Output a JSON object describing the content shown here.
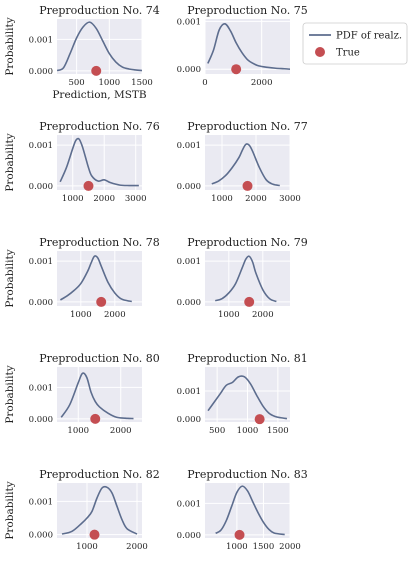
{
  "colors": {
    "plot_bg": "#EAEAF2",
    "grid": "#FFFFFF",
    "curve": "#5D6D8E",
    "dot": "#C44E52",
    "legend_border": "#CCCCCC"
  },
  "legend": {
    "position": "top-right",
    "entries": [
      "PDF of realz.",
      "True"
    ]
  },
  "y_label": "Probability",
  "chart_data": [
    {
      "type": "line",
      "title": "Preproduction No. 74",
      "xlabel": "Prediction, MSTB",
      "ylabel": "Probability",
      "xlim": [
        200,
        1500
      ],
      "ylim": [
        -0.0001,
        0.00165
      ],
      "xticks": [
        500,
        1000,
        1500
      ],
      "yticks": [
        0,
        0.001
      ],
      "ytick_labels": [
        "0.000",
        "0.001"
      ],
      "x": [
        200,
        300,
        400,
        500,
        600,
        700,
        800,
        900,
        1000,
        1100,
        1200,
        1300,
        1400,
        1500
      ],
      "y": [
        1e-05,
        0.0001,
        0.00055,
        0.00105,
        0.0014,
        0.00155,
        0.00135,
        0.00095,
        0.00055,
        0.00028,
        0.00012,
        6e-05,
        3e-05,
        1e-05
      ],
      "true_value": 800
    },
    {
      "type": "line",
      "title": "Preproduction No. 75",
      "xlabel": "",
      "ylabel": "",
      "xlim": [
        0,
        3000
      ],
      "ylim": [
        -0.0001,
        0.00105
      ],
      "xticks": [
        0,
        2000
      ],
      "yticks": [
        0,
        0.001
      ],
      "ytick_labels": [
        "0.000",
        "0.001"
      ],
      "x": [
        100,
        300,
        500,
        700,
        900,
        1100,
        1300,
        1500,
        1700,
        1900,
        2200,
        2500,
        2800,
        3000
      ],
      "y": [
        0.00012,
        0.0004,
        0.00082,
        0.00095,
        0.0008,
        0.00055,
        0.00035,
        0.0002,
        0.00012,
        7e-05,
        4e-05,
        2e-05,
        1e-05,
        0
      ],
      "true_value": 1100
    },
    {
      "type": "line",
      "title": "Preproduction No. 76",
      "xlabel": "",
      "ylabel": "Probability",
      "xlim": [
        500,
        3200
      ],
      "ylim": [
        -0.0001,
        0.00125
      ],
      "xticks": [
        1000,
        2000,
        3000
      ],
      "yticks": [
        0,
        0.001
      ],
      "ytick_labels": [
        "0.000",
        "0.001"
      ],
      "x": [
        600,
        800,
        1000,
        1100,
        1200,
        1300,
        1400,
        1500,
        1600,
        1800,
        2000,
        2200,
        2500,
        2800,
        3100
      ],
      "y": [
        0.0001,
        0.00045,
        0.00092,
        0.00112,
        0.00115,
        0.00098,
        0.00072,
        0.00045,
        0.00025,
        0.00012,
        0.00015,
        8e-05,
        2e-05,
        1e-05,
        1e-05
      ],
      "true_value": 1500
    },
    {
      "type": "line",
      "title": "Preproduction No. 77",
      "xlabel": "",
      "ylabel": "",
      "xlim": [
        500,
        3000
      ],
      "ylim": [
        -0.0001,
        0.00125
      ],
      "xticks": [
        1000,
        2000,
        3000
      ],
      "yticks": [
        0,
        0.001
      ],
      "ytick_labels": [
        "0.000",
        "0.001"
      ],
      "x": [
        700,
        900,
        1100,
        1300,
        1500,
        1600,
        1700,
        1800,
        1900,
        2100,
        2300,
        2500,
        2700
      ],
      "y": [
        5e-05,
        0.00012,
        0.00025,
        0.00045,
        0.0007,
        0.00088,
        0.00102,
        0.001,
        0.00085,
        0.00045,
        0.00015,
        4e-05,
        1e-05
      ],
      "true_value": 1750
    },
    {
      "type": "line",
      "title": "Preproduction No. 78",
      "xlabel": "",
      "ylabel": "Probability",
      "xlim": [
        300,
        2800
      ],
      "ylim": [
        -0.0001,
        0.00125
      ],
      "xticks": [
        1000,
        2000
      ],
      "yticks": [
        0,
        0.001
      ],
      "ytick_labels": [
        "0.000",
        "0.001"
      ],
      "x": [
        400,
        600,
        800,
        1000,
        1200,
        1300,
        1400,
        1500,
        1600,
        1800,
        2000,
        2200,
        2500
      ],
      "y": [
        5e-05,
        0.00015,
        0.00028,
        0.00045,
        0.00075,
        0.00095,
        0.00112,
        0.00108,
        0.00088,
        0.00048,
        0.00022,
        7e-05,
        1e-05
      ],
      "true_value": 1600
    },
    {
      "type": "line",
      "title": "Preproduction No. 79",
      "xlabel": "",
      "ylabel": "",
      "xlim": [
        300,
        2800
      ],
      "ylim": [
        -0.0001,
        0.00125
      ],
      "xticks": [
        1000,
        2000
      ],
      "yticks": [
        0,
        0.001
      ],
      "ytick_labels": [
        "0.000",
        "0.001"
      ],
      "x": [
        600,
        800,
        1000,
        1200,
        1400,
        1500,
        1600,
        1700,
        1800,
        2000,
        2200,
        2400
      ],
      "y": [
        3e-05,
        8e-05,
        0.00022,
        0.00045,
        0.00085,
        0.00105,
        0.00112,
        0.00098,
        0.0007,
        0.0003,
        8e-05,
        1e-05
      ],
      "true_value": 1600
    },
    {
      "type": "line",
      "title": "Preproduction No. 80",
      "xlabel": "",
      "ylabel": "Probability",
      "xlim": [
        500,
        2500
      ],
      "ylim": [
        -0.0001,
        0.00165
      ],
      "xticks": [
        1000,
        2000
      ],
      "yticks": [
        0,
        0.001
      ],
      "ytick_labels": [
        "0.000",
        "0.001"
      ],
      "x": [
        600,
        800,
        1000,
        1100,
        1200,
        1300,
        1400,
        1500,
        1700,
        1900,
        2100,
        2300
      ],
      "y": [
        5e-05,
        0.00045,
        0.00115,
        0.00145,
        0.00132,
        0.00085,
        0.00055,
        0.00038,
        0.00018,
        5e-05,
        2e-05,
        1e-05
      ],
      "true_value": 1400
    },
    {
      "type": "line",
      "title": "Preproduction No. 81",
      "xlabel": "",
      "ylabel": "",
      "xlim": [
        300,
        1700
      ],
      "ylim": [
        -0.0001,
        0.00185
      ],
      "xticks": [
        500,
        1000,
        1500
      ],
      "yticks": [
        0,
        0.001
      ],
      "ytick_labels": [
        "0.000",
        "0.001"
      ],
      "x": [
        350,
        450,
        550,
        650,
        750,
        850,
        950,
        1050,
        1150,
        1250,
        1350,
        1450,
        1550,
        1650
      ],
      "y": [
        0.0003,
        0.0006,
        0.0009,
        0.0012,
        0.0013,
        0.0015,
        0.0015,
        0.00125,
        0.00085,
        0.00048,
        0.00022,
        0.0001,
        5e-05,
        2e-05
      ],
      "true_value": 1200
    },
    {
      "type": "line",
      "title": "Preproduction No. 82",
      "xlabel": "",
      "ylabel": "Probability",
      "xlim": [
        400,
        2100
      ],
      "ylim": [
        -0.0001,
        0.00155
      ],
      "xticks": [
        1000,
        2000
      ],
      "yticks": [
        0,
        0.001
      ],
      "ytick_labels": [
        "0.000",
        "0.001"
      ],
      "x": [
        500,
        700,
        900,
        1000,
        1100,
        1200,
        1300,
        1400,
        1500,
        1600,
        1700,
        1800,
        2000
      ],
      "y": [
        2e-05,
        0.0001,
        0.00035,
        0.0005,
        0.0007,
        0.0011,
        0.0014,
        0.00142,
        0.00125,
        0.00085,
        0.00045,
        0.00018,
        2e-05
      ],
      "true_value": 1150
    },
    {
      "type": "line",
      "title": "Preproduction No. 83",
      "xlabel": "",
      "ylabel": "",
      "xlim": [
        400,
        2000
      ],
      "ylim": [
        -0.0001,
        0.00165
      ],
      "xticks": [
        1000,
        1500,
        2000
      ],
      "yticks": [
        0,
        0.001
      ],
      "ytick_labels": [
        "0.000",
        "0.001"
      ],
      "x": [
        600,
        700,
        800,
        900,
        1000,
        1100,
        1200,
        1300,
        1400,
        1500,
        1600,
        1700,
        1900
      ],
      "y": [
        5e-05,
        0.00015,
        0.00045,
        0.0009,
        0.00135,
        0.00155,
        0.0014,
        0.00105,
        0.0007,
        0.0004,
        0.00018,
        6e-05,
        1e-05
      ],
      "true_value": 1050
    }
  ]
}
